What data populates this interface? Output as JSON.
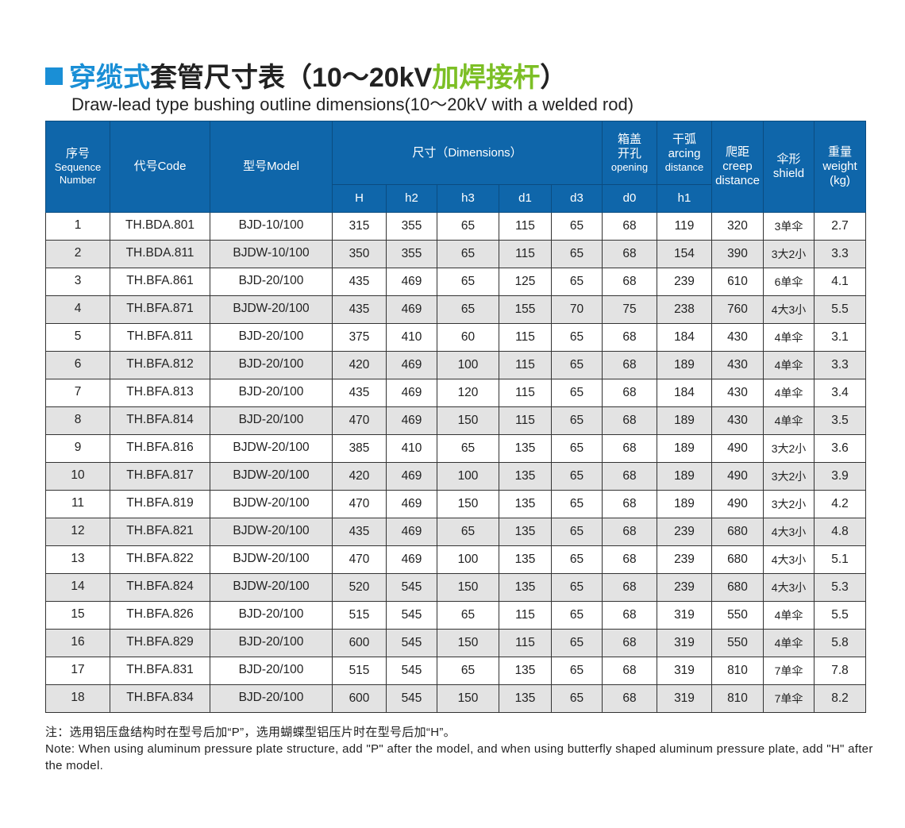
{
  "title": {
    "prefix": "穿缆式",
    "middle": "套管尺寸表（10～20kV",
    "highlight": "加焊接杆",
    "suffix": "）",
    "subtitle": "Draw-lead type bushing outline dimensions(10～20kV with a welded rod)",
    "accent_color": "#1a8fd6",
    "highlight_color": "#7cbf25"
  },
  "table": {
    "header_color": "#0f66aa",
    "headers": {
      "seq_cn": "序号",
      "seq_en1": "Sequence",
      "seq_en2": "Number",
      "code": "代号Code",
      "model": "型号Model",
      "dimensions": "尺寸（Dimensions）",
      "opening_cn1": "箱盖",
      "opening_cn2": "开孔",
      "opening_en": "opening",
      "arcing_cn": "干弧",
      "arcing_en1": "arcing",
      "arcing_en2": "distance",
      "creep_cn": "爬距",
      "creep_en1": "creep",
      "creep_en2": "distance",
      "shield_cn": "伞形",
      "shield_en": "shield",
      "weight_cn": "重量",
      "weight_en1": "weight",
      "weight_en2": "(kg)",
      "sub": [
        "H",
        "h2",
        "h3",
        "d1",
        "d3",
        "d0",
        "h1"
      ]
    },
    "rows": [
      [
        "1",
        "TH.BDA.801",
        "BJD-10/100",
        "315",
        "355",
        "65",
        "115",
        "65",
        "68",
        "119",
        "320",
        "3单伞",
        "2.7"
      ],
      [
        "2",
        "TH.BDA.811",
        "BJDW-10/100",
        "350",
        "355",
        "65",
        "115",
        "65",
        "68",
        "154",
        "390",
        "3大2小",
        "3.3"
      ],
      [
        "3",
        "TH.BFA.861",
        "BJD-20/100",
        "435",
        "469",
        "65",
        "125",
        "65",
        "68",
        "239",
        "610",
        "6单伞",
        "4.1"
      ],
      [
        "4",
        "TH.BFA.871",
        "BJDW-20/100",
        "435",
        "469",
        "65",
        "155",
        "70",
        "75",
        "238",
        "760",
        "4大3小",
        "5.5"
      ],
      [
        "5",
        "TH.BFA.811",
        "BJD-20/100",
        "375",
        "410",
        "60",
        "115",
        "65",
        "68",
        "184",
        "430",
        "4单伞",
        "3.1"
      ],
      [
        "6",
        "TH.BFA.812",
        "BJD-20/100",
        "420",
        "469",
        "100",
        "115",
        "65",
        "68",
        "189",
        "430",
        "4单伞",
        "3.3"
      ],
      [
        "7",
        "TH.BFA.813",
        "BJD-20/100",
        "435",
        "469",
        "120",
        "115",
        "65",
        "68",
        "184",
        "430",
        "4单伞",
        "3.4"
      ],
      [
        "8",
        "TH.BFA.814",
        "BJD-20/100",
        "470",
        "469",
        "150",
        "115",
        "65",
        "68",
        "189",
        "430",
        "4单伞",
        "3.5"
      ],
      [
        "9",
        "TH.BFA.816",
        "BJDW-20/100",
        "385",
        "410",
        "65",
        "135",
        "65",
        "68",
        "189",
        "490",
        "3大2小",
        "3.6"
      ],
      [
        "10",
        "TH.BFA.817",
        "BJDW-20/100",
        "420",
        "469",
        "100",
        "135",
        "65",
        "68",
        "189",
        "490",
        "3大2小",
        "3.9"
      ],
      [
        "11",
        "TH.BFA.819",
        "BJDW-20/100",
        "470",
        "469",
        "150",
        "135",
        "65",
        "68",
        "189",
        "490",
        "3大2小",
        "4.2"
      ],
      [
        "12",
        "TH.BFA.821",
        "BJDW-20/100",
        "435",
        "469",
        "65",
        "135",
        "65",
        "68",
        "239",
        "680",
        "4大3小",
        "4.8"
      ],
      [
        "13",
        "TH.BFA.822",
        "BJDW-20/100",
        "470",
        "469",
        "100",
        "135",
        "65",
        "68",
        "239",
        "680",
        "4大3小",
        "5.1"
      ],
      [
        "14",
        "TH.BFA.824",
        "BJDW-20/100",
        "520",
        "545",
        "150",
        "135",
        "65",
        "68",
        "239",
        "680",
        "4大3小",
        "5.3"
      ],
      [
        "15",
        "TH.BFA.826",
        "BJD-20/100",
        "515",
        "545",
        "65",
        "115",
        "65",
        "68",
        "319",
        "550",
        "4单伞",
        "5.5"
      ],
      [
        "16",
        "TH.BFA.829",
        "BJD-20/100",
        "600",
        "545",
        "150",
        "115",
        "65",
        "68",
        "319",
        "550",
        "4单伞",
        "5.8"
      ],
      [
        "17",
        "TH.BFA.831",
        "BJD-20/100",
        "515",
        "545",
        "65",
        "135",
        "65",
        "68",
        "319",
        "810",
        "7单伞",
        "7.8"
      ],
      [
        "18",
        "TH.BFA.834",
        "BJD-20/100",
        "600",
        "545",
        "150",
        "135",
        "65",
        "68",
        "319",
        "810",
        "7单伞",
        "8.2"
      ]
    ]
  },
  "notes": {
    "cn": "注：选用铝压盘结构时在型号后加“P”，选用蝴蝶型铝压片时在型号后加“H”。",
    "en1": "Note: When using aluminum pressure plate structure, add \"P\" after the model, and when using butterfly shaped aluminum pressure",
    "en2": "plate, add \"H\" after the model."
  }
}
